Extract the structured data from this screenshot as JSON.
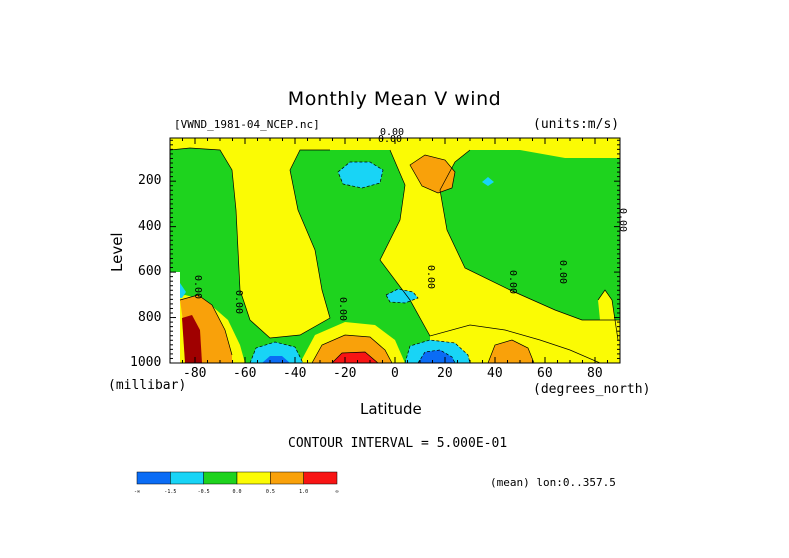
{
  "chart_data": {
    "type": "heatmap",
    "title": "Monthly Mean V wind",
    "file_label": "[VWND_1981-04_NCEP.nc]",
    "units_label": "(units:m/s)",
    "xlabel": "Latitude",
    "x_units": "(degrees_north)",
    "ylabel": "Level",
    "y_units": "(millibar)",
    "xlim": [
      -90,
      90
    ],
    "ylim": [
      1000,
      10
    ],
    "x_ticks": [
      "-80",
      "-60",
      "-40",
      "-20",
      "0",
      "20",
      "40",
      "60",
      "80"
    ],
    "y_ticks": [
      "200",
      "400",
      "600",
      "800",
      "1000"
    ],
    "contour_interval_text": "CONTOUR INTERVAL = 5.000E-01",
    "mean_label": "(mean) lon:0..357.5",
    "contour_labels": [
      "0.00",
      "0.00",
      "0.00",
      "0.00",
      "0.00",
      "0.00",
      "0.00",
      "0.00",
      "0.00"
    ],
    "colorbar": {
      "colors": [
        "#0a6cf5",
        "#18d4f6",
        "#1ed31e",
        "#fbfb04",
        "#f9a10a",
        "#f81414"
      ],
      "tick_labels": [
        "-∞",
        "-1.5",
        "-0.5",
        "0.0",
        "0.5",
        "1.0",
        "∞"
      ]
    }
  }
}
